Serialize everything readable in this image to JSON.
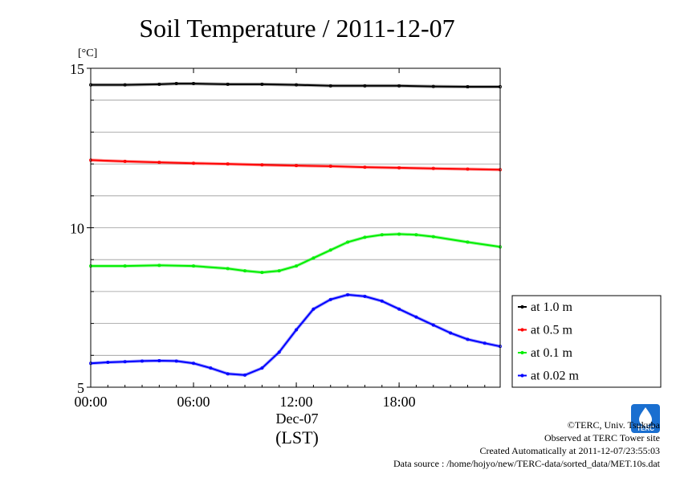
{
  "chart_data": {
    "type": "line",
    "title": "Soil Temperature / 2011-12-07",
    "ylabel": "[°C]",
    "xlabel": "(LST)",
    "date_label": "Dec-07",
    "ylim": [
      5,
      15
    ],
    "yticks": [
      "5",
      "10",
      "15"
    ],
    "xlim_hours": [
      0,
      23.9
    ],
    "xticks": [
      "00:00",
      "06:00",
      "12:00",
      "18:00"
    ],
    "grid": true,
    "legend_position": "bottom-right, outside plot",
    "series": [
      {
        "name": "at 1.0 m",
        "color": "#000000",
        "x": [
          0,
          2,
          4,
          5,
          6,
          8,
          10,
          12,
          14,
          16,
          18,
          20,
          22,
          23.9
        ],
        "y": [
          14.48,
          14.48,
          14.5,
          14.52,
          14.52,
          14.5,
          14.5,
          14.48,
          14.45,
          14.45,
          14.45,
          14.43,
          14.42,
          14.42
        ]
      },
      {
        "name": "at 0.5 m",
        "color": "#ff0000",
        "x": [
          0,
          2,
          4,
          6,
          8,
          10,
          12,
          14,
          16,
          18,
          20,
          22,
          23.9
        ],
        "y": [
          12.12,
          12.08,
          12.05,
          12.02,
          12.0,
          11.97,
          11.95,
          11.93,
          11.9,
          11.88,
          11.86,
          11.84,
          11.82
        ]
      },
      {
        "name": "at 0.1 m",
        "color": "#00ee00",
        "x": [
          0,
          2,
          4,
          6,
          8,
          9,
          10,
          11,
          12,
          13,
          14,
          15,
          16,
          17,
          18,
          19,
          20,
          22,
          23.9
        ],
        "y": [
          8.8,
          8.8,
          8.82,
          8.8,
          8.72,
          8.65,
          8.6,
          8.65,
          8.8,
          9.05,
          9.3,
          9.55,
          9.7,
          9.78,
          9.8,
          9.78,
          9.72,
          9.55,
          9.4
        ]
      },
      {
        "name": "at 0.02 m",
        "color": "#0000ff",
        "x": [
          0,
          1,
          2,
          3,
          4,
          5,
          6,
          7,
          8,
          9,
          10,
          11,
          12,
          13,
          14,
          15,
          16,
          17,
          18,
          19,
          20,
          21,
          22,
          23,
          23.9
        ],
        "y": [
          5.75,
          5.78,
          5.8,
          5.82,
          5.83,
          5.82,
          5.75,
          5.6,
          5.42,
          5.38,
          5.6,
          6.1,
          6.8,
          7.45,
          7.75,
          7.9,
          7.85,
          7.7,
          7.45,
          7.2,
          6.95,
          6.7,
          6.5,
          6.38,
          6.28
        ]
      }
    ]
  },
  "footer": {
    "copyright": "©TERC, Univ. Tsukuba",
    "observed": "Observed at TERC Tower site",
    "created": "Created Automatically at 2011-12-07/23:55:03",
    "source": "Data source : /home/hojyo/new/TERC-data/sorted_data/MET.10s.dat"
  },
  "logo": {
    "text": "TERC",
    "color": "#1a6fd0"
  }
}
